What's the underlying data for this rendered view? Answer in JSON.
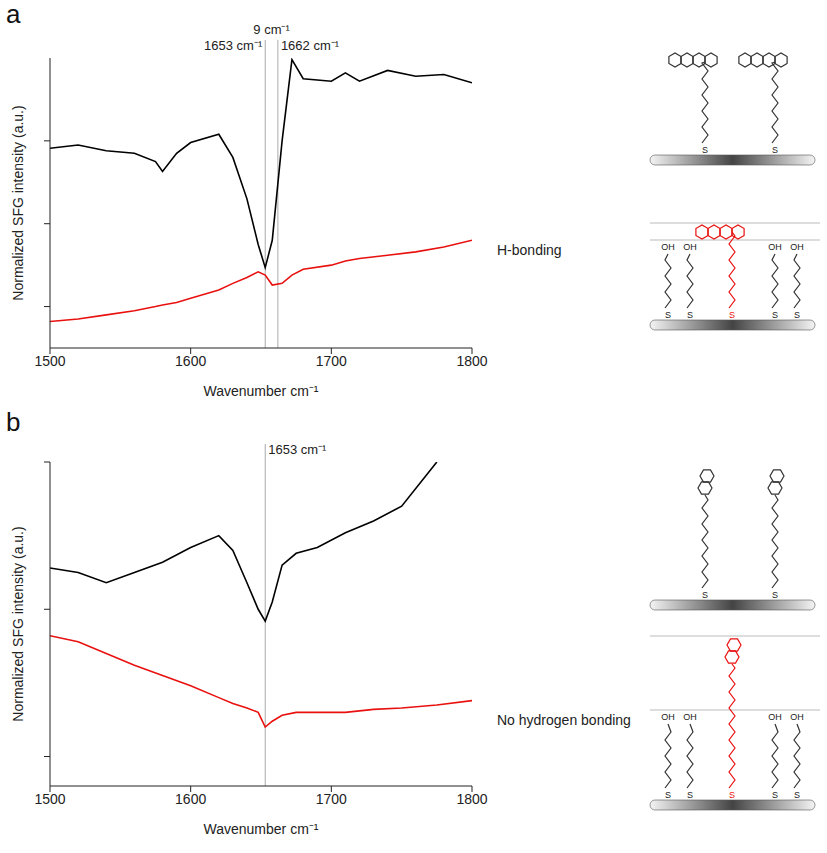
{
  "chart_data": [
    {
      "type": "line",
      "panel": "a",
      "xlabel": "Wavenumber cm⁻¹",
      "ylabel": "Normalized SFG intensity (a.u.)",
      "side_label": "H-bonding",
      "x": [
        1500,
        1520,
        1540,
        1560,
        1575,
        1580,
        1590,
        1600,
        1620,
        1630,
        1640,
        1648,
        1653,
        1658,
        1665,
        1672,
        1680,
        1700,
        1710,
        1720,
        1740,
        1760,
        1780,
        1800
      ],
      "series": [
        {
          "color": "#000000",
          "values": [
            1.91,
            1.95,
            1.88,
            1.85,
            1.75,
            1.63,
            1.85,
            1.98,
            2.08,
            1.8,
            1.3,
            0.75,
            0.47,
            0.8,
            2.0,
            2.98,
            2.75,
            2.72,
            2.82,
            2.72,
            2.85,
            2.78,
            2.8,
            2.7
          ]
        },
        {
          "color": "#e8110f",
          "values": [
            -0.18,
            -0.15,
            -0.1,
            -0.05,
            0.0,
            0.02,
            0.05,
            0.1,
            0.2,
            0.28,
            0.35,
            0.42,
            0.38,
            0.26,
            0.28,
            0.38,
            0.45,
            0.5,
            0.55,
            0.58,
            0.62,
            0.66,
            0.72,
            0.8
          ]
        }
      ],
      "xlim": [
        1500,
        1800
      ],
      "xticks": [
        1500,
        1600,
        1700,
        1800
      ],
      "ylim": [
        -0.5,
        3.0
      ],
      "yticks": [
        0,
        1,
        2
      ],
      "tick_labels": "x",
      "grid": false,
      "reference_lines": [
        1653,
        1662
      ],
      "annotations": [
        {
          "text": "1653 cm⁻¹",
          "x": 1653
        },
        {
          "text": "1662 cm⁻¹",
          "x": 1662
        },
        {
          "text": "9 cm⁻¹",
          "x": 1657.5
        }
      ]
    },
    {
      "type": "line",
      "panel": "b",
      "xlabel": "Wavenumber cm⁻¹",
      "ylabel": "Normalized SFG intensity (a.u.)",
      "side_label": "No hydrogen bonding",
      "x": [
        1500,
        1520,
        1540,
        1560,
        1580,
        1600,
        1620,
        1630,
        1640,
        1648,
        1653,
        1658,
        1665,
        1675,
        1690,
        1710,
        1730,
        1750,
        1775,
        1800
      ],
      "series": [
        {
          "color": "#000000",
          "values": [
            1.28,
            1.25,
            1.18,
            1.25,
            1.32,
            1.42,
            1.5,
            1.4,
            1.18,
            1.0,
            0.92,
            1.05,
            1.3,
            1.38,
            1.42,
            1.52,
            1.6,
            1.7,
            2.0,
            null
          ]
        },
        {
          "color": "#e8110f",
          "values": [
            0.82,
            0.78,
            0.7,
            0.62,
            0.55,
            0.48,
            0.4,
            0.36,
            0.33,
            0.3,
            0.2,
            0.24,
            0.28,
            0.3,
            0.3,
            0.3,
            0.32,
            0.33,
            0.35,
            0.38
          ]
        }
      ],
      "xlim": [
        1500,
        1800
      ],
      "xticks": [
        1500,
        1600,
        1700,
        1800
      ],
      "ylim": [
        -0.2,
        2.0
      ],
      "yticks": [
        0,
        1,
        2
      ],
      "tick_labels": "x",
      "grid": false,
      "reference_lines": [
        1653
      ],
      "annotations": [
        {
          "text": "1653 cm⁻¹",
          "x": 1653
        }
      ]
    }
  ],
  "diagram": {
    "thiol": "S",
    "hydroxyl": "OH"
  }
}
